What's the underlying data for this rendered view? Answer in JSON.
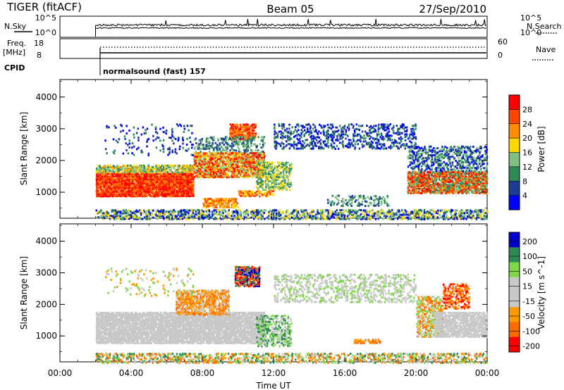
{
  "header": {
    "station": "TIGER (fitACF)",
    "beam": "Beam 05",
    "date": "27/Sep/2010"
  },
  "panels": {
    "nsky_label": "N.Sky",
    "nsky_ticks": [
      "10^5",
      "10^0"
    ],
    "nsearch_label": "N.Search",
    "nsearch_ticks": [
      "10^5",
      "10^0"
    ],
    "freq_label": "Freq.",
    "freq_unit": "[MHz]",
    "freq_ticks": [
      "18",
      "8"
    ],
    "nave_label": "Nave",
    "nave_ticks": [
      "60",
      "0"
    ],
    "cpid_label": "CPID",
    "cpid_value": "normalsound (fast) 157"
  },
  "chart_data": [
    {
      "type": "heatmap",
      "quantity": "power",
      "ylabel": "Slant Range [km]",
      "ylim": [
        180,
        4550
      ],
      "yticks": [
        "1000",
        "2000",
        "3000",
        "4000"
      ],
      "colorbar_label": "Power [dB]",
      "colorbar_ticks": [
        "28",
        "24",
        "20",
        "16",
        "12",
        "8",
        "4"
      ],
      "colorbar_colors": [
        "#ff0000",
        "#ff4500",
        "#ff8c00",
        "#ffd700",
        "#7fbf7f",
        "#2e8b57",
        "#1e3c96",
        "#0000ff"
      ]
    },
    {
      "type": "heatmap",
      "quantity": "velocity",
      "ylabel": "Slant Range [km]",
      "ylim": [
        180,
        4550
      ],
      "yticks": [
        "1000",
        "2000",
        "3000",
        "4000"
      ],
      "colorbar_label": "Velocity [m s^-1]",
      "colorbar_ticks": [
        "200",
        "100",
        "50",
        "15",
        "-15",
        "-50",
        "-100",
        "-200"
      ],
      "colorbar_colors": [
        "#0000cc",
        "#2e8b57",
        "#7fd84a",
        "#c8c8c8",
        "#c8c8c8",
        "#ff9900",
        "#ff6a00",
        "#ff0000"
      ]
    }
  ],
  "xaxis": {
    "label": "Time UT",
    "ticks": [
      "00:00",
      "04:00",
      "08:00",
      "12:00",
      "16:00",
      "20:00",
      "00:00"
    ]
  }
}
